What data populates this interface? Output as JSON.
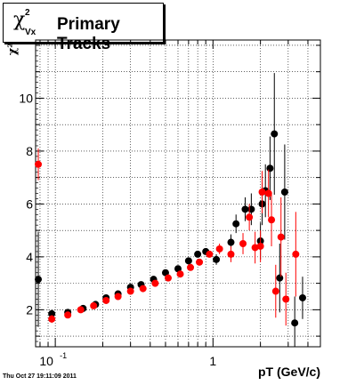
{
  "header": {
    "title_symbol": "χ",
    "title_superscript": "2",
    "title_subscript": "Vx",
    "title_text": "Primary Tracks"
  },
  "chart_data": {
    "type": "scatter",
    "title": "Primary Tracks",
    "xlabel": "pT (GeV/c)",
    "ylabel": "χ²",
    "x_scale": "log",
    "xlim": [
      0.075,
      4.8
    ],
    "ylim": [
      0.6,
      12.2
    ],
    "grid": true,
    "y_ticks": [
      2,
      4,
      6,
      8,
      10
    ],
    "x_tick_labels": [
      {
        "value": 0.1,
        "label": "10",
        "exponent": "-1"
      },
      {
        "value": 1,
        "label": "1",
        "exponent": ""
      }
    ],
    "series": [
      {
        "color": "#000000",
        "points": [
          {
            "x": 0.078,
            "y": 3.15,
            "err": 1.8
          },
          {
            "x": 0.095,
            "y": 1.85,
            "err": 0.15
          },
          {
            "x": 0.12,
            "y": 1.9,
            "err": 0.08
          },
          {
            "x": 0.15,
            "y": 2.05,
            "err": 0.06
          },
          {
            "x": 0.18,
            "y": 2.2,
            "err": 0.05
          },
          {
            "x": 0.21,
            "y": 2.45,
            "err": 0.05
          },
          {
            "x": 0.25,
            "y": 2.6,
            "err": 0.05
          },
          {
            "x": 0.3,
            "y": 2.85,
            "err": 0.05
          },
          {
            "x": 0.35,
            "y": 2.95,
            "err": 0.05
          },
          {
            "x": 0.42,
            "y": 3.15,
            "err": 0.06
          },
          {
            "x": 0.5,
            "y": 3.4,
            "err": 0.06
          },
          {
            "x": 0.6,
            "y": 3.55,
            "err": 0.07
          },
          {
            "x": 0.7,
            "y": 3.85,
            "err": 0.08
          },
          {
            "x": 0.8,
            "y": 4.1,
            "err": 0.1
          },
          {
            "x": 0.9,
            "y": 4.2,
            "err": 0.12
          },
          {
            "x": 1.05,
            "y": 3.9,
            "err": 0.2
          },
          {
            "x": 1.3,
            "y": 4.55,
            "err": 0.3
          },
          {
            "x": 1.4,
            "y": 5.25,
            "err": 0.35
          },
          {
            "x": 1.6,
            "y": 5.8,
            "err": 0.45
          },
          {
            "x": 1.75,
            "y": 5.8,
            "err": 0.6
          },
          {
            "x": 2.0,
            "y": 4.6,
            "err": 0.7
          },
          {
            "x": 2.05,
            "y": 6.0,
            "err": 0.8
          },
          {
            "x": 2.15,
            "y": 6.5,
            "err": 1.0
          },
          {
            "x": 2.3,
            "y": 7.35,
            "err": 1.2
          },
          {
            "x": 2.45,
            "y": 8.65,
            "err": 2.3
          },
          {
            "x": 2.65,
            "y": 3.2,
            "err": 1.3
          },
          {
            "x": 2.85,
            "y": 6.45,
            "err": 1.8
          },
          {
            "x": 3.3,
            "y": 1.5,
            "err": 1.0
          },
          {
            "x": 3.7,
            "y": 2.45,
            "err": 0.8
          }
        ]
      },
      {
        "color": "#ff0000",
        "points": [
          {
            "x": 0.078,
            "y": 7.5,
            "err": 0.6
          },
          {
            "x": 0.095,
            "y": 1.65,
            "err": 0.15
          },
          {
            "x": 0.12,
            "y": 1.8,
            "err": 0.08
          },
          {
            "x": 0.145,
            "y": 2.0,
            "err": 0.06
          },
          {
            "x": 0.175,
            "y": 2.15,
            "err": 0.05
          },
          {
            "x": 0.21,
            "y": 2.35,
            "err": 0.05
          },
          {
            "x": 0.25,
            "y": 2.5,
            "err": 0.05
          },
          {
            "x": 0.3,
            "y": 2.7,
            "err": 0.05
          },
          {
            "x": 0.36,
            "y": 2.8,
            "err": 0.05
          },
          {
            "x": 0.43,
            "y": 3.0,
            "err": 0.06
          },
          {
            "x": 0.52,
            "y": 3.2,
            "err": 0.06
          },
          {
            "x": 0.62,
            "y": 3.35,
            "err": 0.07
          },
          {
            "x": 0.72,
            "y": 3.6,
            "err": 0.08
          },
          {
            "x": 0.82,
            "y": 3.8,
            "err": 0.1
          },
          {
            "x": 0.95,
            "y": 4.1,
            "err": 0.12
          },
          {
            "x": 1.1,
            "y": 4.3,
            "err": 0.2
          },
          {
            "x": 1.3,
            "y": 4.1,
            "err": 0.3
          },
          {
            "x": 1.55,
            "y": 4.5,
            "err": 0.4
          },
          {
            "x": 1.7,
            "y": 5.5,
            "err": 0.5
          },
          {
            "x": 1.85,
            "y": 4.35,
            "err": 0.6
          },
          {
            "x": 2.0,
            "y": 4.4,
            "err": 0.6
          },
          {
            "x": 2.05,
            "y": 6.45,
            "err": 0.8
          },
          {
            "x": 2.25,
            "y": 6.4,
            "err": 0.9
          },
          {
            "x": 2.35,
            "y": 5.4,
            "err": 1.0
          },
          {
            "x": 2.5,
            "y": 2.7,
            "err": 1.0
          },
          {
            "x": 2.7,
            "y": 4.75,
            "err": 1.5
          },
          {
            "x": 2.9,
            "y": 2.4,
            "err": 1.0
          },
          {
            "x": 3.35,
            "y": 4.1,
            "err": 1.6
          }
        ]
      }
    ]
  },
  "footer": {
    "timestamp": "Thu Oct 27 19:11:09 2011"
  }
}
